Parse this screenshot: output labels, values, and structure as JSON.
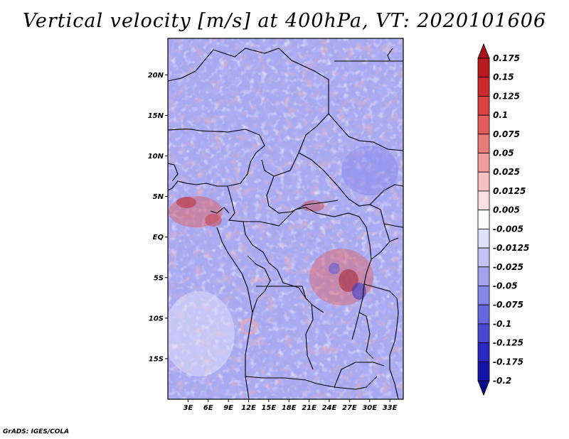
{
  "title": "Vertical velocity [m/s] at 400hPa, VT: 2020101606",
  "credit": "GrADS: IGES/COLA",
  "map": {
    "lon_range": [
      0,
      35
    ],
    "lat_range": [
      -20,
      24.5
    ],
    "lat_labels": [
      "20N",
      "15N",
      "10N",
      "5N",
      "EQ",
      "5S",
      "10S",
      "15S"
    ],
    "lat_values": [
      20,
      15,
      10,
      5,
      0,
      -5,
      -10,
      -15
    ],
    "lon_labels": [
      "3E",
      "6E",
      "9E",
      "12E",
      "15E",
      "18E",
      "21E",
      "24E",
      "27E",
      "30E",
      "33E"
    ],
    "lon_values": [
      3,
      6,
      9,
      12,
      15,
      18,
      21,
      24,
      27,
      30,
      33
    ]
  },
  "colorbar": {
    "labels": [
      "0.175",
      "0.15",
      "0.125",
      "0.1",
      "0.075",
      "0.05",
      "0.025",
      "0.0125",
      "0.005",
      "-0.005",
      "-0.0125",
      "-0.025",
      "-0.05",
      "-0.075",
      "-0.1",
      "-0.125",
      "-0.175",
      "-0.2"
    ],
    "colors": [
      "#a50f15",
      "#b81a1e",
      "#cb2a2a",
      "#dc4040",
      "#e35a5a",
      "#ea7b7b",
      "#f19b9b",
      "#f7c0c0",
      "#fbe1e1",
      "#ffffff",
      "#e0e0fb",
      "#c2c2f6",
      "#a3a3f0",
      "#8585ea",
      "#6666e0",
      "#4848d2",
      "#2a2ac0",
      "#1414a8",
      "#0a0a8c"
    ]
  }
}
